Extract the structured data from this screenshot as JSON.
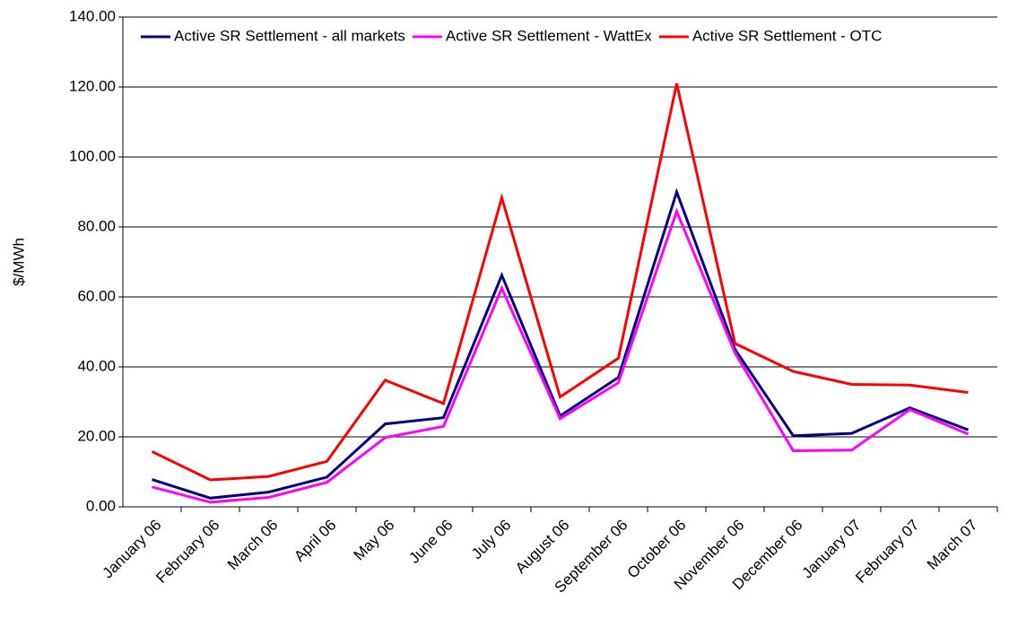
{
  "chart_data": {
    "type": "line",
    "y_label": "$/MWh",
    "categories": [
      "January 06",
      "February 06",
      "March 06",
      "April 06",
      "May 06",
      "June 06",
      "July 06",
      "August 06",
      "September 06",
      "October 06",
      "November 06",
      "December 06",
      "January 07",
      "February 07",
      "March 07"
    ],
    "series": [
      {
        "name": "Active SR Settlement - all markets",
        "color": "#000080",
        "values": [
          7.8,
          2.5,
          4.2,
          8.5,
          23.7,
          25.5,
          66.2,
          26.0,
          37.0,
          90.0,
          45.0,
          20.3,
          21.0,
          28.3,
          22.0
        ]
      },
      {
        "name": "Active SR Settlement - WattEx",
        "color": "#ff00ff",
        "values": [
          5.7,
          1.3,
          2.7,
          7.0,
          19.8,
          23.0,
          62.5,
          25.2,
          35.5,
          84.5,
          44.0,
          16.0,
          16.2,
          27.8,
          20.8
        ]
      },
      {
        "name": "Active SR Settlement - OTC",
        "color": "#ff0000",
        "values": [
          15.8,
          7.7,
          8.7,
          13.0,
          36.2,
          29.5,
          88.3,
          31.4,
          42.5,
          121.0,
          46.7,
          38.7,
          35.0,
          34.8,
          32.7
        ]
      }
    ],
    "ylim": [
      0,
      140
    ],
    "yticks": [
      {
        "value": 0,
        "label": "0.00"
      },
      {
        "value": 20,
        "label": "20.00"
      },
      {
        "value": 40,
        "label": "40.00"
      },
      {
        "value": 60,
        "label": "60.00"
      },
      {
        "value": 80,
        "label": "80.00"
      },
      {
        "value": 100,
        "label": "100.00"
      },
      {
        "value": 120,
        "label": "120.00"
      },
      {
        "value": 140,
        "label": "140.00"
      }
    ],
    "grid": true,
    "legend": "top"
  }
}
